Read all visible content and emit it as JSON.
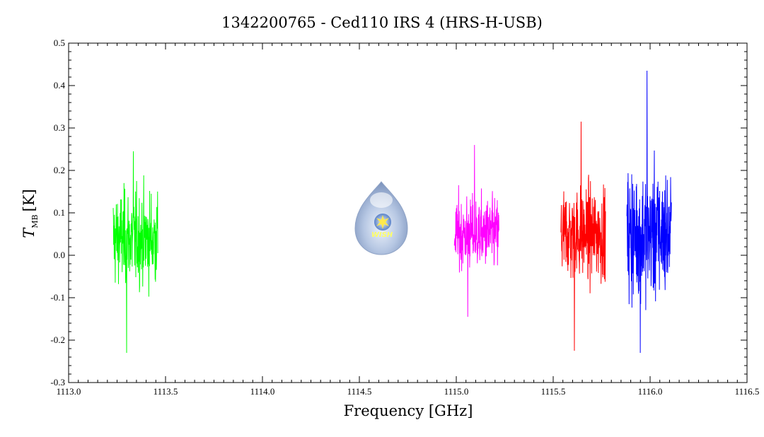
{
  "chart_data": {
    "type": "line",
    "title": "1342200765 - Ced110 IRS 4 (HRS-H-USB)",
    "xlabel": "Frequency [GHz]",
    "ylabel_main": "T",
    "ylabel_sub": "MB",
    "ylabel_unit": "[K]",
    "xlim": [
      1113.0,
      1116.5
    ],
    "ylim": [
      -0.3,
      0.5
    ],
    "x_ticks": [
      "1113.0",
      "1113.5",
      "1114.0",
      "1114.5",
      "1115.0",
      "1115.5",
      "1116.0",
      "1116.5"
    ],
    "x_tick_values": [
      1113.0,
      1113.5,
      1114.0,
      1114.5,
      1115.0,
      1115.5,
      1116.0,
      1116.5
    ],
    "y_ticks": [
      "-0.3",
      "-0.2",
      "-0.1",
      "0.0",
      "0.1",
      "0.2",
      "0.3",
      "0.4",
      "0.5"
    ],
    "y_tick_values": [
      -0.3,
      -0.2,
      -0.1,
      0.0,
      0.1,
      0.2,
      0.3,
      0.4,
      0.5
    ],
    "grid": false,
    "series": [
      {
        "color": "#00ff00",
        "x_range": [
          1113.23,
          1113.46
        ],
        "mean": 0.04,
        "y_min": -0.23,
        "y_max": 0.245
      },
      {
        "color": "#ff00ff",
        "x_range": [
          1114.99,
          1115.22
        ],
        "mean": 0.05,
        "y_min": -0.145,
        "y_max": 0.26
      },
      {
        "color": "#ff0000",
        "x_range": [
          1115.54,
          1115.77
        ],
        "mean": 0.05,
        "y_min": -0.225,
        "y_max": 0.315
      },
      {
        "color": "#0000ff",
        "x_range": [
          1115.88,
          1116.11
        ],
        "mean": 0.05,
        "y_min": -0.23,
        "y_max": 0.435
      }
    ],
    "logo": {
      "text": "WISH"
    }
  }
}
